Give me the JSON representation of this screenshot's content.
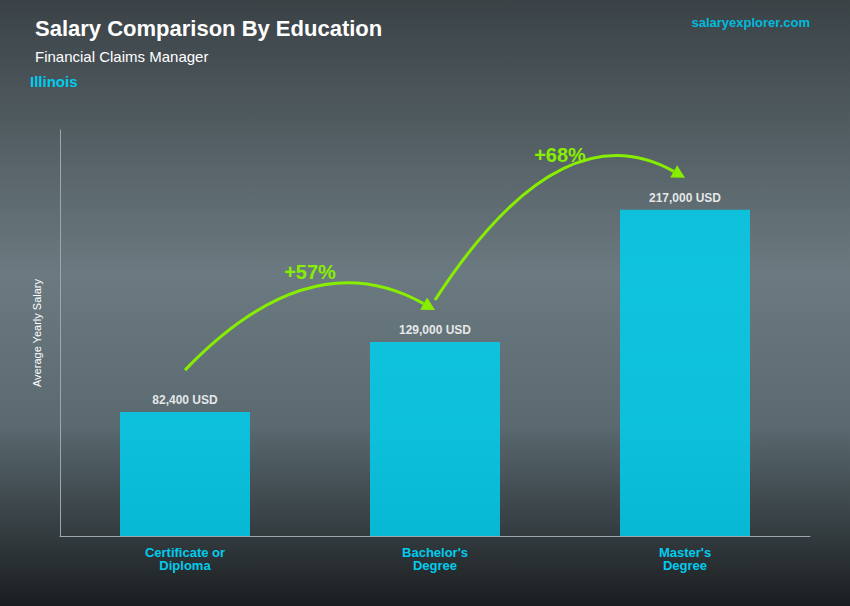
{
  "chart_data": {
    "type": "bar",
    "title": "Salary Comparison By Education",
    "subtitle": "Financial Claims Manager",
    "annotations": [
      "Illinois",
      "salaryexplorer.com",
      "+57%",
      "+68%"
    ],
    "ylabel": "Average Yearly Salary",
    "categories": [
      "Certificate or\nDiploma",
      "Bachelor's\nDegree",
      "Master's\nDegree"
    ],
    "values": [
      82400,
      129000,
      217000
    ],
    "value_labels": [
      "82,400 USD",
      "129,000 USD",
      "217,000 USD"
    ],
    "color": "#00cfee",
    "ylim": [
      0,
      270000
    ],
    "grid": false,
    "data_labels": true,
    "tick_labels": "x"
  }
}
